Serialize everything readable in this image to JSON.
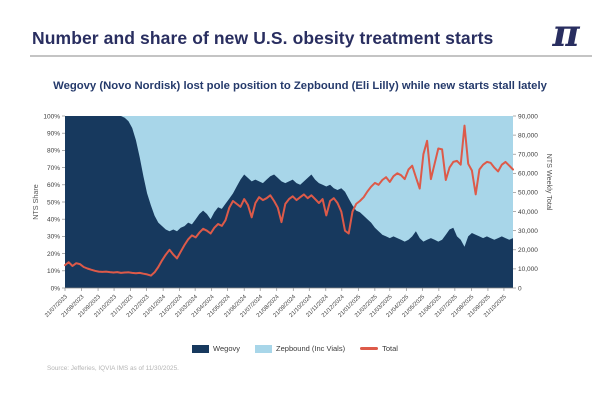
{
  "header": {
    "title": "Number and share of new U.S. obesity treatment starts",
    "logo_glyph": "π"
  },
  "chart": {
    "subtitle": "Wegovy (Novo Nordisk) lost pole position to Zepbound (Eli Lilly) while new starts stall lately"
  },
  "footer": {
    "source": "Source: Jefferies, IQVIA IMS as of 11/30/2025."
  },
  "theme": {
    "title_color": "#292e60",
    "subtitle_color": "#253a6b",
    "divider_color": "#c4c4c4",
    "axis_text_color": "#3c3c3c",
    "axis_label_color": "#555555",
    "axis_line_color": "#8a8a8a",
    "source_color": "#b5b5b5"
  },
  "chart_data": {
    "type": "area",
    "variant": "100pct-stacked-area-with-total-line",
    "frequency": "weekly",
    "start_date": "2023-07-21",
    "title": "Wegovy (Novo Nordisk) lost pole position to Zepbound (Eli Lilly) while new starts stall lately",
    "left_axis": {
      "label": "NTS Share",
      "min": 0,
      "max": 100,
      "tick_labels": [
        "0%",
        "10%",
        "20%",
        "30%",
        "40%",
        "50%",
        "60%",
        "70%",
        "80%",
        "90%",
        "100%"
      ]
    },
    "right_axis": {
      "label": "NTS Weekly Total",
      "min": 0,
      "max": 90000,
      "tick_labels": [
        "0",
        "10,000",
        "20,000",
        "30,000",
        "40,000",
        "50,000",
        "60,000",
        "70,000",
        "80,000",
        "90,000"
      ]
    },
    "x_tick_labels": [
      "21/07/2023",
      "21/08/2023",
      "21/09/2023",
      "21/10/2023",
      "21/11/2023",
      "21/12/2023",
      "21/01/2024",
      "21/02/2024",
      "21/03/2024",
      "21/04/2024",
      "21/05/2024",
      "21/06/2024",
      "21/07/2024",
      "21/08/2024",
      "21/09/2024",
      "21/10/2024",
      "21/11/2024",
      "21/12/2024",
      "21/01/2025",
      "21/02/2025",
      "21/03/2025",
      "21/04/2025",
      "21/05/2025",
      "21/06/2025",
      "21/07/2025",
      "21/08/2025",
      "21/09/2025",
      "21/10/2025"
    ],
    "series": [
      {
        "name": "Wegovy",
        "type": "area",
        "axis": "left",
        "unit": "pct",
        "color": "#17395E",
        "values": [
          100,
          100,
          100,
          100,
          100,
          100,
          100,
          100,
          100,
          100,
          100,
          100,
          100,
          100,
          100,
          100,
          99,
          97,
          93,
          86,
          76,
          65,
          55,
          48,
          42,
          38,
          36,
          34,
          33,
          34,
          33,
          35,
          36,
          38,
          37,
          40,
          43,
          45,
          43,
          40,
          44,
          47,
          46,
          49,
          52,
          55,
          59,
          63,
          66,
          64,
          62,
          63,
          62,
          61,
          63,
          65,
          66,
          64,
          62,
          61,
          62,
          63,
          61,
          60,
          62,
          64,
          66,
          63,
          61,
          60,
          59,
          60,
          58,
          57,
          58,
          56,
          52,
          48,
          45,
          44,
          42,
          40,
          38,
          35,
          33,
          31,
          30,
          29,
          30,
          29,
          28,
          27,
          28,
          30,
          33,
          29,
          27,
          28,
          29,
          28,
          27,
          28,
          31,
          34,
          35,
          30,
          28,
          24,
          30,
          32,
          31,
          30,
          29,
          30,
          29,
          28,
          29,
          30,
          29,
          28,
          29
        ]
      },
      {
        "name": "Zepbound (Inc Vials)",
        "type": "area",
        "axis": "left",
        "unit": "pct",
        "color": "#A8D6E9",
        "values": [
          0,
          0,
          0,
          0,
          0,
          0,
          0,
          0,
          0,
          0,
          0,
          0,
          0,
          0,
          0,
          0,
          1,
          3,
          7,
          14,
          24,
          35,
          45,
          52,
          58,
          62,
          64,
          66,
          67,
          66,
          67,
          65,
          64,
          62,
          63,
          60,
          57,
          55,
          57,
          60,
          56,
          53,
          54,
          51,
          48,
          45,
          41,
          37,
          34,
          36,
          38,
          37,
          38,
          39,
          37,
          35,
          34,
          36,
          38,
          39,
          38,
          37,
          39,
          40,
          38,
          36,
          34,
          37,
          39,
          40,
          41,
          40,
          42,
          43,
          42,
          44,
          48,
          52,
          55,
          56,
          58,
          60,
          62,
          65,
          67,
          69,
          70,
          71,
          70,
          71,
          72,
          73,
          72,
          70,
          67,
          71,
          73,
          72,
          71,
          72,
          73,
          72,
          69,
          66,
          65,
          70,
          72,
          76,
          70,
          68,
          69,
          70,
          71,
          70,
          71,
          72,
          71,
          70,
          71,
          72,
          71
        ]
      },
      {
        "name": "Total",
        "type": "line",
        "axis": "right",
        "unit": "count",
        "color": "#DD5A49",
        "values": [
          12000,
          13500,
          11500,
          13000,
          12500,
          11000,
          10200,
          9600,
          9000,
          8600,
          8400,
          8600,
          8300,
          8100,
          8300,
          7900,
          8100,
          8200,
          7900,
          7700,
          7900,
          7500,
          7100,
          6500,
          8200,
          11000,
          14500,
          17500,
          20000,
          17500,
          15500,
          19000,
          22500,
          25500,
          27500,
          26500,
          29000,
          31000,
          30000,
          28500,
          31500,
          33500,
          32500,
          35500,
          42000,
          45500,
          44000,
          42500,
          46500,
          43500,
          37000,
          44500,
          47500,
          46000,
          47000,
          48500,
          45500,
          42000,
          34500,
          44000,
          46500,
          48000,
          46000,
          47500,
          49000,
          47000,
          48500,
          46500,
          44500,
          46500,
          38000,
          45500,
          47000,
          44500,
          40000,
          30000,
          28500,
          40000,
          44000,
          45500,
          47500,
          50500,
          53000,
          55000,
          54000,
          56500,
          58000,
          55500,
          58500,
          60000,
          59000,
          57000,
          62000,
          64000,
          58000,
          52000,
          70000,
          77000,
          57000,
          65000,
          73000,
          72500,
          56500,
          63000,
          66000,
          66500,
          64500,
          85000,
          65000,
          61500,
          49000,
          62000,
          64500,
          66000,
          65500,
          63000,
          61000,
          64500,
          66000,
          64000,
          62000
        ]
      }
    ],
    "legend": [
      {
        "label": "Wegovy",
        "color": "#17395E",
        "swatch": "rect"
      },
      {
        "label": "Zepbound (Inc Vials)",
        "color": "#A8D6E9",
        "swatch": "rect"
      },
      {
        "label": "Total",
        "color": "#DD5A49",
        "swatch": "line"
      }
    ]
  }
}
